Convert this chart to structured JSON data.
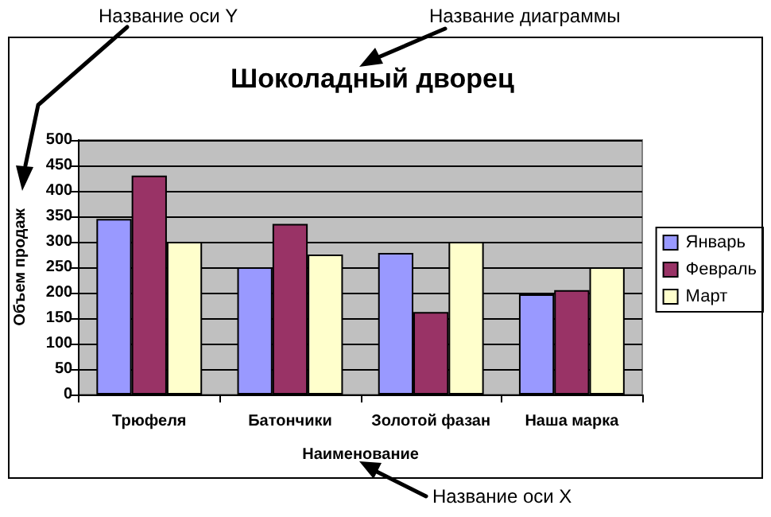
{
  "chart_data": {
    "type": "bar",
    "title": "Шоколадный дворец",
    "xlabel": "Наименование",
    "ylabel": "Объем продаж",
    "annotations": [
      "Название оси Y",
      "Название диаграммы",
      "Название оси X"
    ],
    "categories": [
      "Трюфеля",
      "Батончики",
      "Золотой фазан",
      "Наша марка"
    ],
    "series": [
      {
        "name": "Январь",
        "color": "#9999ff",
        "values": [
          345,
          250,
          278,
          197
        ]
      },
      {
        "name": "Февраль",
        "color": "#993366",
        "values": [
          430,
          335,
          162,
          205
        ]
      },
      {
        "name": "Март",
        "color": "#ffffcc",
        "values": [
          300,
          275,
          300,
          250
        ]
      }
    ],
    "ylim": [
      0,
      500
    ],
    "yticks": [
      0,
      50,
      100,
      150,
      200,
      250,
      300,
      350,
      400,
      450,
      500
    ],
    "grid": "y",
    "legend": "right"
  }
}
